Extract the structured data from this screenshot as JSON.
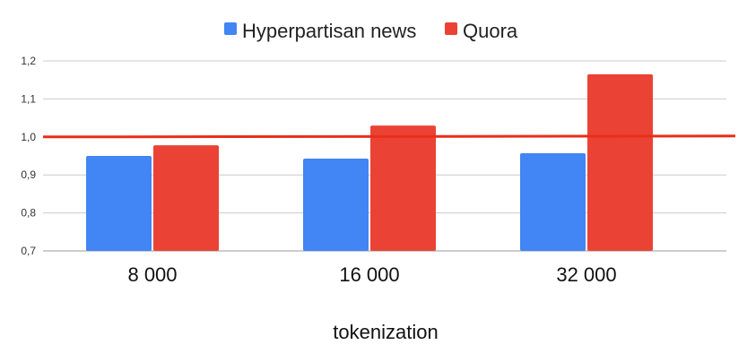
{
  "chart_data": {
    "type": "bar",
    "xlabel": "tokenization",
    "ylabel": "",
    "categories": [
      "8 000",
      "16 000",
      "32 000"
    ],
    "series": [
      {
        "name": "Hyperpartisan news",
        "color": "#4285f4",
        "values": [
          0.95,
          0.943,
          0.957
        ]
      },
      {
        "name": "Quora",
        "color": "#ea4335",
        "values": [
          0.978,
          1.03,
          1.165
        ]
      }
    ],
    "ylim": [
      0.7,
      1.2
    ],
    "yticks": [
      {
        "value": 0.7,
        "label": "0,7"
      },
      {
        "value": 0.8,
        "label": "0,8"
      },
      {
        "value": 0.9,
        "label": "0,9"
      },
      {
        "value": 1.0,
        "label": "1,0"
      },
      {
        "value": 1.1,
        "label": "1,1"
      },
      {
        "value": 1.2,
        "label": "1,2"
      }
    ],
    "reference_line": {
      "value": 1.0,
      "color": "#ea2e1a"
    },
    "grid": true,
    "legend": "top-center"
  }
}
